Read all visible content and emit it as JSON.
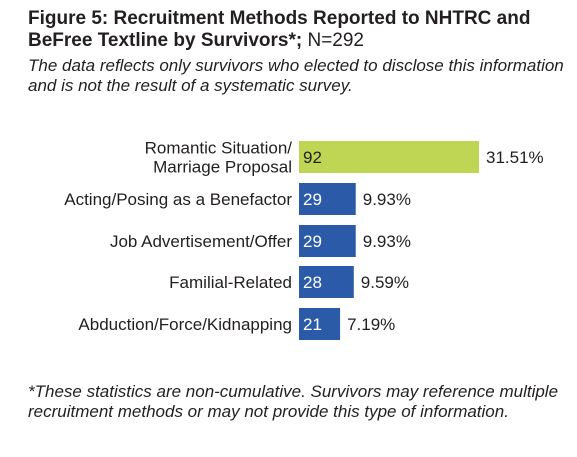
{
  "header": {
    "title_bold": "Figure 5: Recruitment Methods Reported to NHTRC and BeFree Textline by Survivors*;",
    "title_n": " N=292",
    "subtitle": "The data reflects only survivors who elected to disclose this information and is not the result of a systematic survey."
  },
  "footnote": "*These statistics are non-cumulative. Survivors may reference multiple recruitment methods or may not provide this type of information.",
  "colors": {
    "highlight_bar": "#bed654",
    "default_bar": "#2b5ba8",
    "highlight_value_text": "#231f20",
    "default_value_text": "#ffffff"
  },
  "chart_data": {
    "type": "bar",
    "orientation": "horizontal",
    "title": "Figure 5: Recruitment Methods Reported to NHTRC and BeFree Textline by Survivors*; N=292",
    "categories": [
      [
        "Romantic Situation/",
        "Marriage Proposal"
      ],
      [
        "Acting/Posing as a Benefactor"
      ],
      [
        "Job Advertisement/Offer"
      ],
      [
        "Familial-Related"
      ],
      [
        "Abduction/Force/Kidnapping"
      ]
    ],
    "values": [
      92,
      29,
      29,
      28,
      21
    ],
    "percent_labels": [
      "31.51%",
      "9.93%",
      "9.93%",
      "9.59%",
      "7.19%"
    ],
    "highlight_index": 0,
    "xlim": [
      0,
      92
    ],
    "grid": false,
    "legend": "none"
  }
}
